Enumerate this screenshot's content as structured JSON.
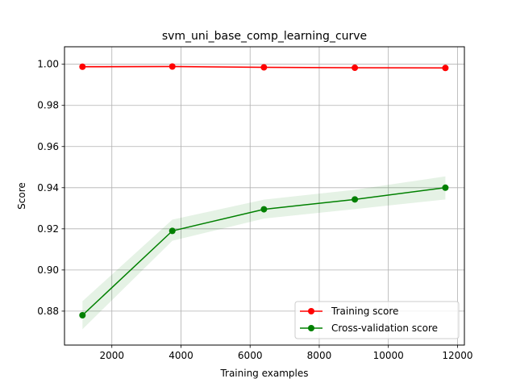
{
  "chart_data": {
    "type": "line",
    "title": "svm_uni_base_comp_learning_curve",
    "xlabel": "Training examples",
    "ylabel": "Score",
    "xlim": [
      630,
      12200
    ],
    "ylim": [
      0.8635,
      1.0085
    ],
    "xticks": [
      2000,
      4000,
      6000,
      8000,
      10000,
      12000
    ],
    "xtick_labels": [
      "2000",
      "4000",
      "6000",
      "8000",
      "10000",
      "12000"
    ],
    "yticks": [
      0.88,
      0.9,
      0.92,
      0.94,
      0.96,
      0.98,
      1.0
    ],
    "ytick_labels": [
      "0.88",
      "0.90",
      "0.92",
      "0.94",
      "0.96",
      "0.98",
      "1.00"
    ],
    "grid": true,
    "legend_position": "lower-right",
    "x": [
      1150,
      3750,
      6400,
      9030,
      11650
    ],
    "series": [
      {
        "name": "Training score",
        "color": "#ff0000",
        "values": [
          0.9988,
          0.9989,
          0.9985,
          0.9983,
          0.9982
        ],
        "band_lower": [
          0.998,
          0.9983,
          0.998,
          0.9978,
          0.9977
        ],
        "band_upper": [
          0.9996,
          0.9995,
          0.999,
          0.9988,
          0.9987
        ]
      },
      {
        "name": "Cross-validation score",
        "color": "#008000",
        "values": [
          0.878,
          0.919,
          0.9295,
          0.9343,
          0.94
        ],
        "band_lower": [
          0.8712,
          0.9142,
          0.925,
          0.9296,
          0.9343
        ],
        "band_upper": [
          0.8848,
          0.9245,
          0.9342,
          0.939,
          0.9455
        ]
      }
    ]
  }
}
